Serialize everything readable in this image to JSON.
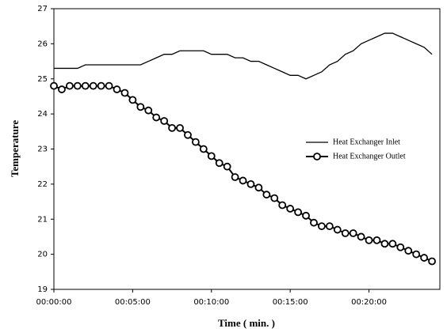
{
  "chart_data": {
    "type": "line",
    "x_label": "Time ( min. )",
    "y_label": "Temperature",
    "x": [
      0,
      0.5,
      1,
      1.5,
      2,
      2.5,
      3,
      3.5,
      4,
      4.5,
      5,
      5.5,
      6,
      6.5,
      7,
      7.5,
      8,
      8.5,
      9,
      9.5,
      10,
      10.5,
      11,
      11.5,
      12,
      12.5,
      13,
      13.5,
      14,
      14.5,
      15,
      15.5,
      16,
      16.5,
      17,
      17.5,
      18,
      18.5,
      19,
      19.5,
      20,
      20.5,
      21,
      21.5,
      22,
      22.5,
      23,
      23.5,
      24
    ],
    "series": [
      {
        "name": "Heat Exchanger Inlet",
        "color": "#000000",
        "marker": "none",
        "values": [
          25.3,
          25.3,
          25.3,
          25.3,
          25.4,
          25.4,
          25.4,
          25.4,
          25.4,
          25.4,
          25.4,
          25.4,
          25.5,
          25.6,
          25.7,
          25.7,
          25.8,
          25.8,
          25.8,
          25.8,
          25.7,
          25.7,
          25.7,
          25.6,
          25.6,
          25.5,
          25.5,
          25.4,
          25.3,
          25.2,
          25.1,
          25.1,
          25.0,
          25.1,
          25.2,
          25.4,
          25.5,
          25.7,
          25.8,
          26.0,
          26.1,
          26.2,
          26.3,
          26.3,
          26.2,
          26.1,
          26.0,
          25.9,
          25.7
        ]
      },
      {
        "name": "Heat Exchanger Outlet",
        "color": "#000000",
        "marker": "circle",
        "values": [
          24.8,
          24.7,
          24.8,
          24.8,
          24.8,
          24.8,
          24.8,
          24.8,
          24.7,
          24.6,
          24.4,
          24.2,
          24.1,
          23.9,
          23.8,
          23.6,
          23.6,
          23.4,
          23.2,
          23.0,
          22.8,
          22.6,
          22.5,
          22.2,
          22.1,
          22.0,
          21.9,
          21.7,
          21.6,
          21.4,
          21.3,
          21.2,
          21.1,
          20.9,
          20.8,
          20.8,
          20.7,
          20.6,
          20.6,
          20.5,
          20.4,
          20.4,
          20.3,
          20.3,
          20.2,
          20.1,
          20.0,
          19.9,
          19.8
        ]
      }
    ],
    "xlim": [
      0,
      24.5
    ],
    "xticks": [
      {
        "value": 0,
        "label": "00:00:00"
      },
      {
        "value": 5,
        "label": "00:05:00"
      },
      {
        "value": 10,
        "label": "00:10:00"
      },
      {
        "value": 15,
        "label": "00:15:00"
      },
      {
        "value": 20,
        "label": "00:20:00"
      }
    ],
    "ylim": [
      19,
      27
    ],
    "yticks": [
      19,
      20,
      21,
      22,
      23,
      24,
      25,
      26,
      27
    ],
    "grid": false,
    "legend": "right"
  }
}
